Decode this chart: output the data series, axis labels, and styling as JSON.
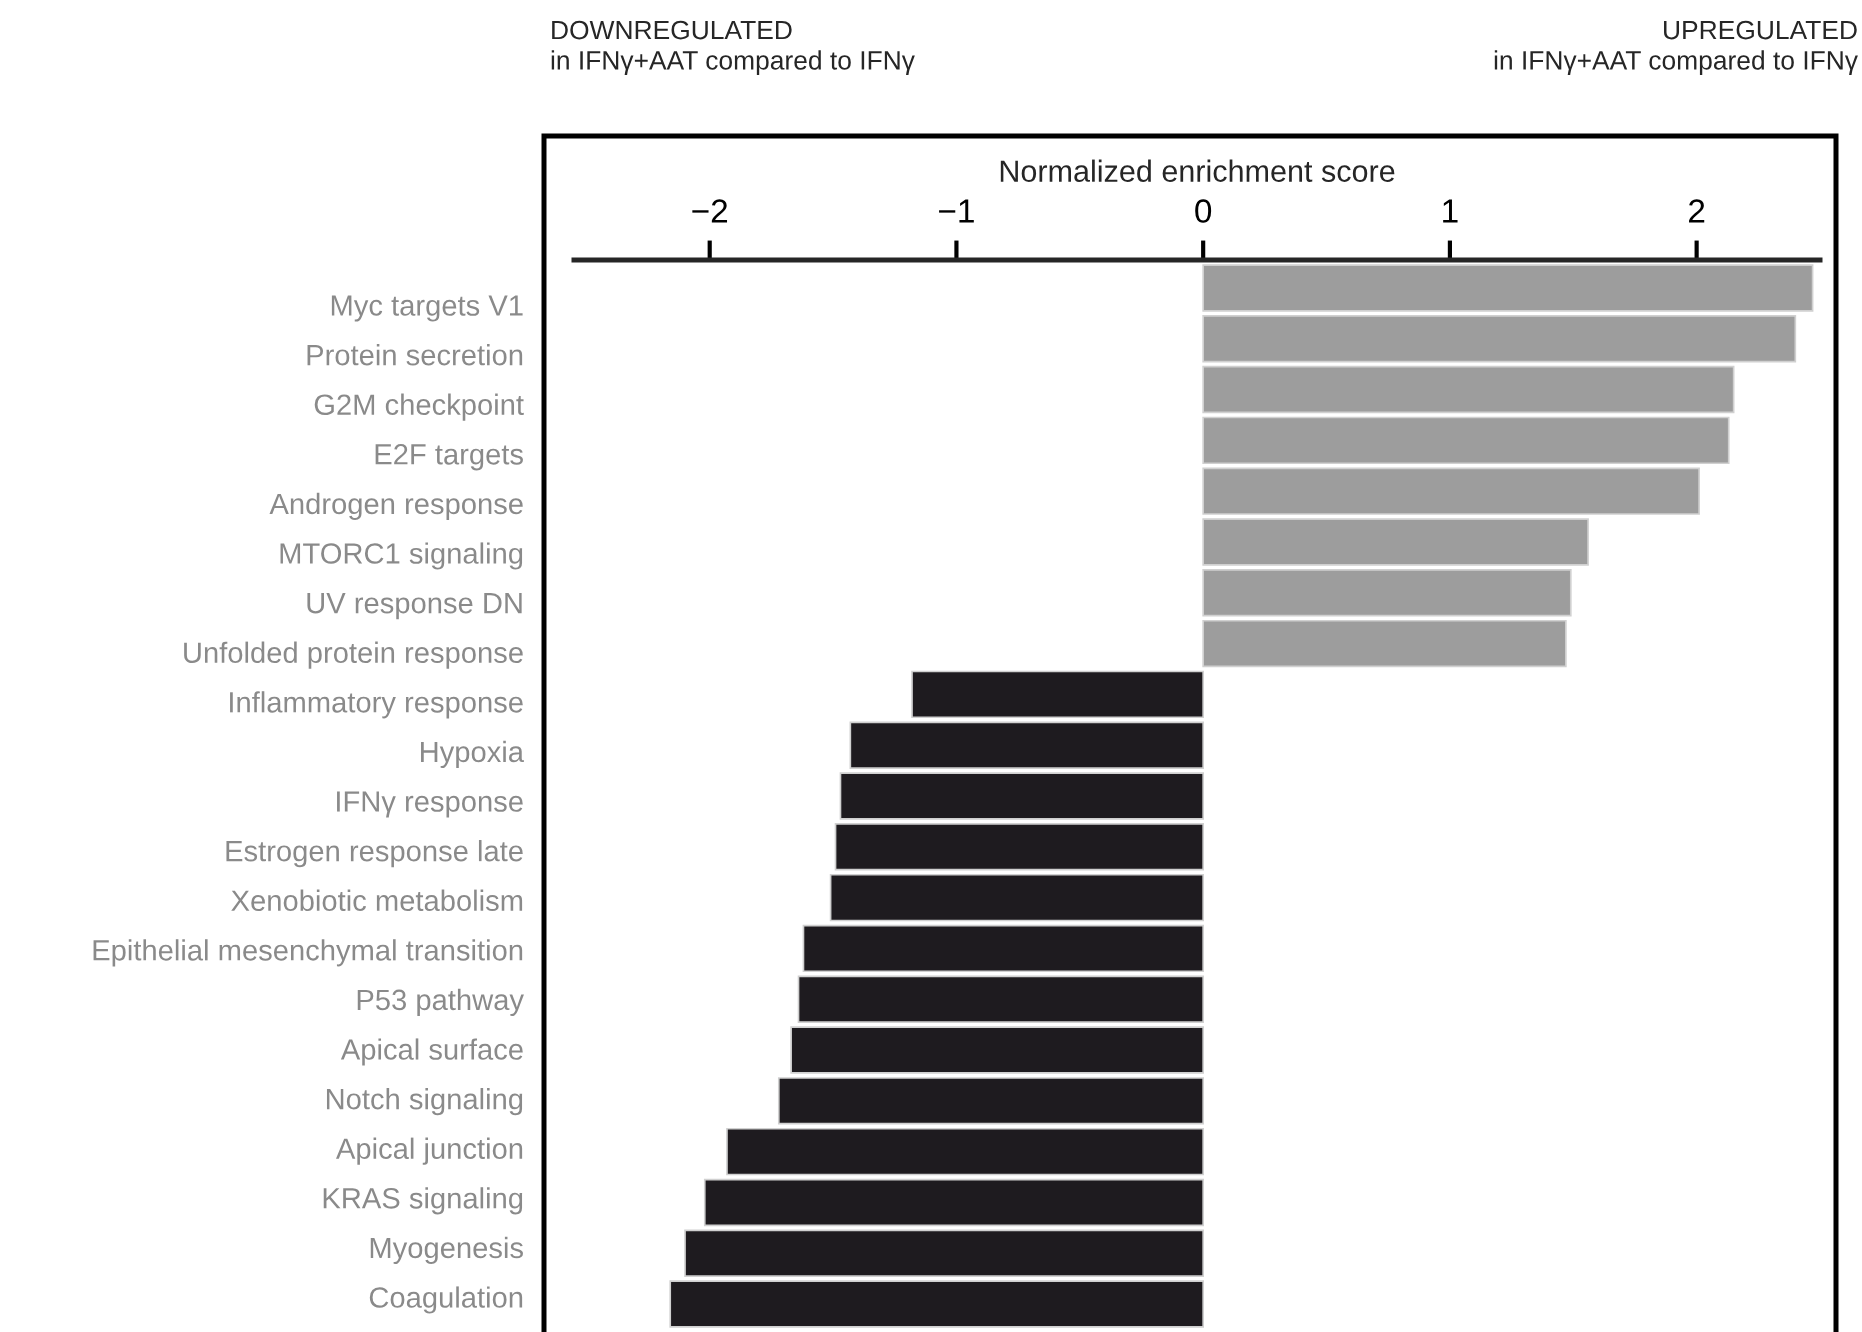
{
  "chart_data": {
    "type": "bar",
    "orientation": "horizontal",
    "xlabel": "Normalized enrichment score",
    "categories": [
      "Myc targets V1",
      "Protein secretion",
      "G2M checkpoint",
      "E2F targets",
      "Androgen response",
      "MTORC1 signaling",
      "UV response DN",
      "Unfolded protein response",
      "Inflammatory response",
      "Hypoxia",
      "IFNγ response",
      "Estrogen response late",
      "Xenobiotic metabolism",
      "Epithelial mesenchymal transition",
      "P53 pathway",
      "Apical surface",
      "Notch signaling",
      "Apical junction",
      "KRAS signaling",
      "Myogenesis",
      "Coagulation"
    ],
    "values": [
      2.47,
      2.4,
      2.15,
      2.13,
      2.01,
      1.56,
      1.49,
      1.47,
      -1.18,
      -1.43,
      -1.47,
      -1.49,
      -1.51,
      -1.62,
      -1.64,
      -1.67,
      -1.72,
      -1.93,
      -2.02,
      -2.1,
      -2.16
    ],
    "colors": [
      "#9d9d9d",
      "#9d9d9d",
      "#9d9d9d",
      "#9d9d9d",
      "#9d9d9d",
      "#9d9d9d",
      "#9d9d9d",
      "#9d9d9d",
      "#1e1b1f",
      "#1e1b1f",
      "#1e1b1f",
      "#1e1b1f",
      "#1e1b1f",
      "#1e1b1f",
      "#1e1b1f",
      "#1e1b1f",
      "#1e1b1f",
      "#1e1b1f",
      "#1e1b1f",
      "#1e1b1f",
      "#1e1b1f"
    ],
    "xlim": [
      -2.55,
      2.5
    ],
    "xticks": [
      {
        "value": -2,
        "label": "−2"
      },
      {
        "value": -1,
        "label": "−1"
      },
      0,
      1,
      2
    ],
    "annotations": [
      "DOWNREGULATED\nin IFNγ+AAT compared to IFNγ",
      "UPREGULATED\nin IFNγ+AAT compared to IFNγ"
    ],
    "grid": false,
    "legend": false
  }
}
